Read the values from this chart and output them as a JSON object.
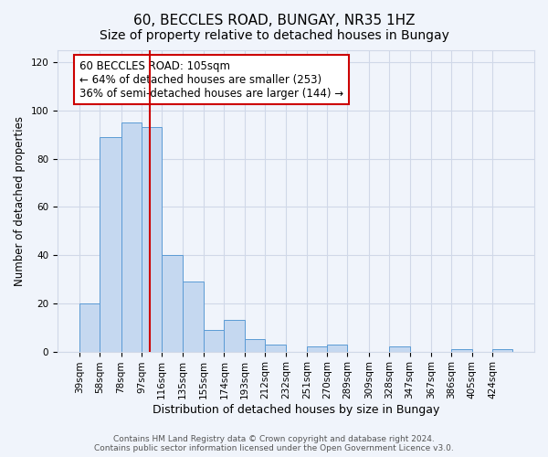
{
  "title": "60, BECCLES ROAD, BUNGAY, NR35 1HZ",
  "subtitle": "Size of property relative to detached houses in Bungay",
  "xlabel": "Distribution of detached houses by size in Bungay",
  "ylabel": "Number of detached properties",
  "bar_edges": [
    39,
    58,
    78,
    97,
    116,
    135,
    155,
    174,
    193,
    212,
    232,
    251,
    270,
    289,
    309,
    328,
    347,
    367,
    386,
    405,
    424,
    443
  ],
  "bar_heights": [
    20,
    89,
    95,
    93,
    40,
    29,
    9,
    13,
    5,
    3,
    0,
    2,
    3,
    0,
    0,
    2,
    0,
    0,
    1,
    0,
    1
  ],
  "tick_labels": [
    "39sqm",
    "58sqm",
    "78sqm",
    "97sqm",
    "116sqm",
    "135sqm",
    "155sqm",
    "174sqm",
    "193sqm",
    "212sqm",
    "232sqm",
    "251sqm",
    "270sqm",
    "289sqm",
    "309sqm",
    "328sqm",
    "347sqm",
    "367sqm",
    "386sqm",
    "405sqm",
    "424sqm"
  ],
  "bar_color": "#c5d8f0",
  "bar_edgecolor": "#5b9bd5",
  "grid_color": "#d0d8e8",
  "bg_color": "#f0f4fb",
  "property_line_x": 105,
  "property_line_color": "#cc0000",
  "annotation_box_text": "60 BECCLES ROAD: 105sqm\n← 64% of detached houses are smaller (253)\n36% of semi-detached houses are larger (144) →",
  "annotation_fontsize": 8.5,
  "ylim": [
    0,
    125
  ],
  "yticks": [
    0,
    20,
    40,
    60,
    80,
    100,
    120
  ],
  "footer_text": "Contains HM Land Registry data © Crown copyright and database right 2024.\nContains public sector information licensed under the Open Government Licence v3.0.",
  "title_fontsize": 11,
  "subtitle_fontsize": 10,
  "xlabel_fontsize": 9,
  "ylabel_fontsize": 8.5,
  "tick_fontsize": 7.5,
  "footer_fontsize": 6.5
}
